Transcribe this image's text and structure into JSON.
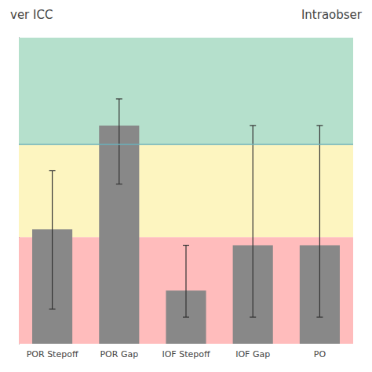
{
  "chart_data": {
    "type": "bar",
    "titles": [
      "ver ICC",
      "Intraobser"
    ],
    "categories": [
      "POR Stepoff",
      "POR Gap",
      "IOF Stepoff",
      "IOF Gap",
      "PO"
    ],
    "values": [
      0.43,
      0.82,
      0.2,
      0.37,
      0.37
    ],
    "error_upper": [
      0.22,
      0.1,
      0.17,
      0.45,
      0.45
    ],
    "error_lower": [
      0.3,
      0.22,
      0.1,
      0.27,
      0.27
    ],
    "color": "#888888",
    "ylim": [
      0.0,
      1.15
    ],
    "tick_labels": "x",
    "grid": false,
    "bands": [
      {
        "ymin": 0.75,
        "ymax": 1.15,
        "color": "#b5e0cc"
      },
      {
        "ymin": 0.4,
        "ymax": 0.75,
        "color": "#fdf5c0"
      },
      {
        "ymin": 0.0,
        "ymax": 0.4,
        "color": "#ffbcbc"
      }
    ],
    "hline": {
      "y": 0.75,
      "color": "#6ab0bb"
    }
  }
}
